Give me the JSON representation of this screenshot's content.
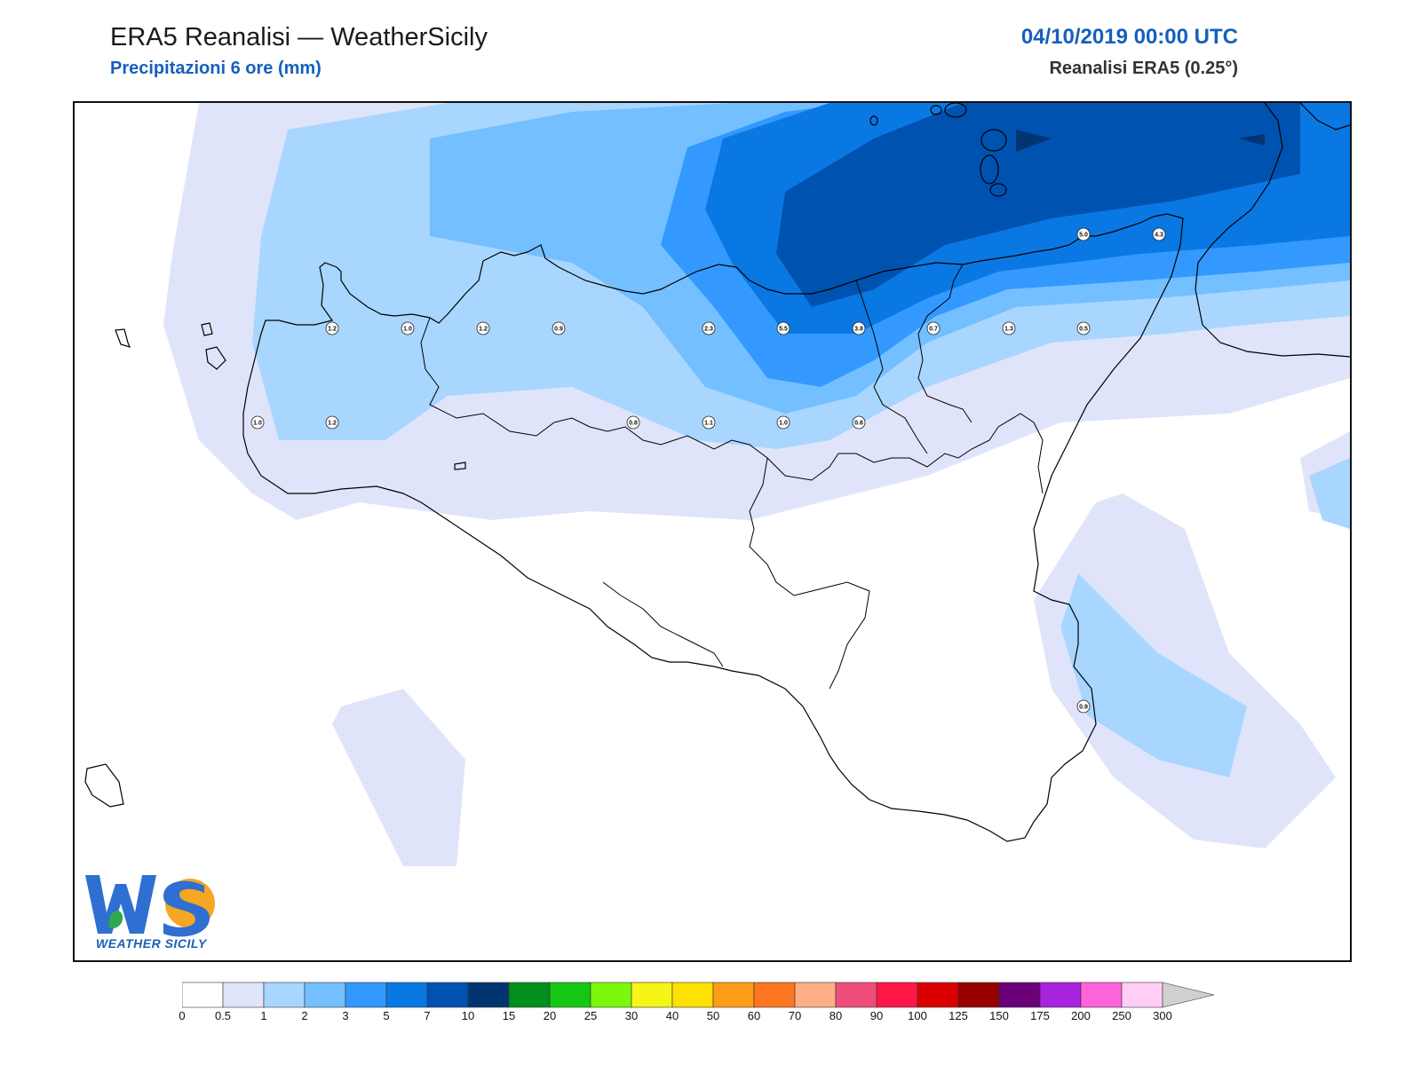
{
  "header": {
    "title": "ERA5 Reanalisi — WeatherSicily",
    "subtitle": "Precipitazioni 6 ore (mm)",
    "datetime": "04/10/2019 00:00 UTC",
    "model": "Reanalisi ERA5 (0.25°)"
  },
  "logo": {
    "text": "WEATHER SICILY",
    "mark": "WS"
  },
  "stations": [
    {
      "value": "1.2"
    },
    {
      "value": "1.0"
    },
    {
      "value": "1.2"
    },
    {
      "value": "0.9"
    },
    {
      "value": "2.3"
    },
    {
      "value": "5.5"
    },
    {
      "value": "3.8"
    },
    {
      "value": "0.7"
    },
    {
      "value": "1.3"
    },
    {
      "value": "0.5"
    },
    {
      "value": "5.0"
    },
    {
      "value": "4.3"
    },
    {
      "value": "1.0"
    },
    {
      "value": "1.2"
    },
    {
      "value": "0.8"
    },
    {
      "value": "1.1"
    },
    {
      "value": "1.0"
    },
    {
      "value": "0.6"
    },
    {
      "value": "0.9"
    }
  ],
  "colorbar": {
    "labels": [
      "0",
      "0.5",
      "1",
      "2",
      "3",
      "5",
      "7",
      "10",
      "15",
      "20",
      "25",
      "30",
      "40",
      "50",
      "60",
      "70",
      "80",
      "90",
      "100",
      "125",
      "150",
      "175",
      "200",
      "250",
      "300"
    ],
    "colors": [
      "#ffffff",
      "#e0e4fb",
      "#a8d6fe",
      "#73bfff",
      "#3399fe",
      "#0a78e2",
      "#0052b1",
      "#003572",
      "#008e1c",
      "#14c714",
      "#7cf80a",
      "#f5f517",
      "#fde102",
      "#fe9d18",
      "#ff7620",
      "#ffae85",
      "#ef4e7c",
      "#ff1747",
      "#db0000",
      "#980000",
      "#6b0079",
      "#a922dd",
      "#ff64da",
      "#ffcdf6"
    ],
    "overflow_color": "#d0d0d0"
  }
}
